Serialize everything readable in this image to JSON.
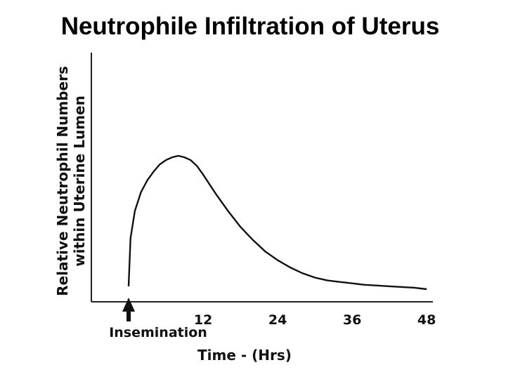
{
  "title": "Neutrophile Infiltration of Uterus",
  "chart_data": {
    "type": "line",
    "xlabel": "Time - (Hrs)",
    "ylabel": "Relative Neutrophil Numbers within Uterine Lumen",
    "x_ticks": [
      "12",
      "24",
      "36",
      "48"
    ],
    "xlim": [
      -6,
      49
    ],
    "ylim": [
      0,
      1
    ],
    "annotation": "Insemination",
    "annotation_x": 0,
    "grid": false,
    "legend": "none",
    "series": [
      {
        "x": [
          0,
          0.3,
          1,
          2,
          3,
          4,
          5,
          6,
          7,
          8,
          9,
          10,
          11,
          12,
          14,
          16,
          18,
          20,
          22,
          24,
          26,
          28,
          30,
          32,
          34,
          36,
          38,
          40,
          42,
          44,
          46,
          48
        ],
        "y": [
          0.02,
          0.35,
          0.54,
          0.67,
          0.75,
          0.81,
          0.86,
          0.89,
          0.91,
          0.92,
          0.91,
          0.89,
          0.85,
          0.79,
          0.66,
          0.54,
          0.43,
          0.34,
          0.26,
          0.2,
          0.15,
          0.11,
          0.08,
          0.06,
          0.05,
          0.04,
          0.03,
          0.025,
          0.02,
          0.015,
          0.01,
          0.0
        ]
      }
    ]
  }
}
